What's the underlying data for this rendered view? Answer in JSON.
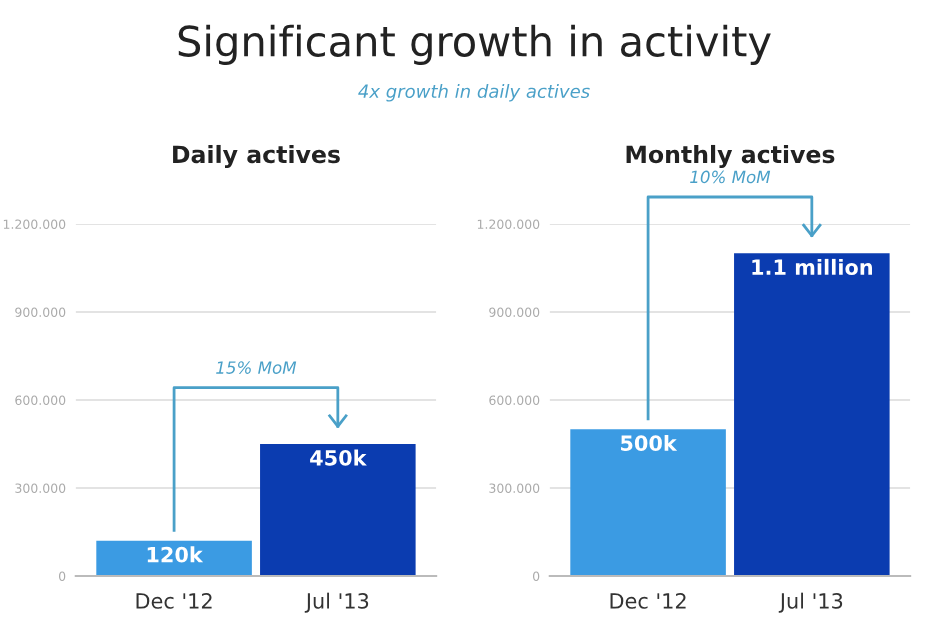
{
  "chart_data": [
    {
      "type": "bar",
      "title": "Daily actives",
      "categories": [
        "Dec '12",
        "Jul '13"
      ],
      "values": [
        120000,
        450000
      ],
      "colors": [
        "#3b9be3",
        "#0b3cb0"
      ],
      "value_labels": [
        "120k",
        "450k"
      ],
      "ylim": [
        0,
        1200000
      ],
      "yticks": [
        {
          "value": 0,
          "label": "0"
        },
        {
          "value": 300000,
          "label": "300.000"
        },
        {
          "value": 600000,
          "label": "600.000"
        },
        {
          "value": 900000,
          "label": "900.000"
        },
        {
          "value": 1200000,
          "label": "1.200.000"
        }
      ],
      "grid": "y",
      "annotations": [
        "Significant growth in activity",
        "4x growth in daily actives",
        "15% MoM"
      ]
    },
    {
      "type": "bar",
      "title": "Monthly actives",
      "categories": [
        "Dec '12",
        "Jul '13"
      ],
      "values": [
        500000,
        1100000
      ],
      "colors": [
        "#3b9be3",
        "#0b3cb0"
      ],
      "value_labels": [
        "500k",
        "1.1 million"
      ],
      "ylim": [
        0,
        1200000
      ],
      "yticks": [
        {
          "value": 0,
          "label": "0"
        },
        {
          "value": 300000,
          "label": "300.000"
        },
        {
          "value": 600000,
          "label": "600.000"
        },
        {
          "value": 900000,
          "label": "900.000"
        },
        {
          "value": 1200000,
          "label": "1.200.000"
        }
      ],
      "grid": "y",
      "annotations": [
        "10% MoM"
      ]
    }
  ]
}
